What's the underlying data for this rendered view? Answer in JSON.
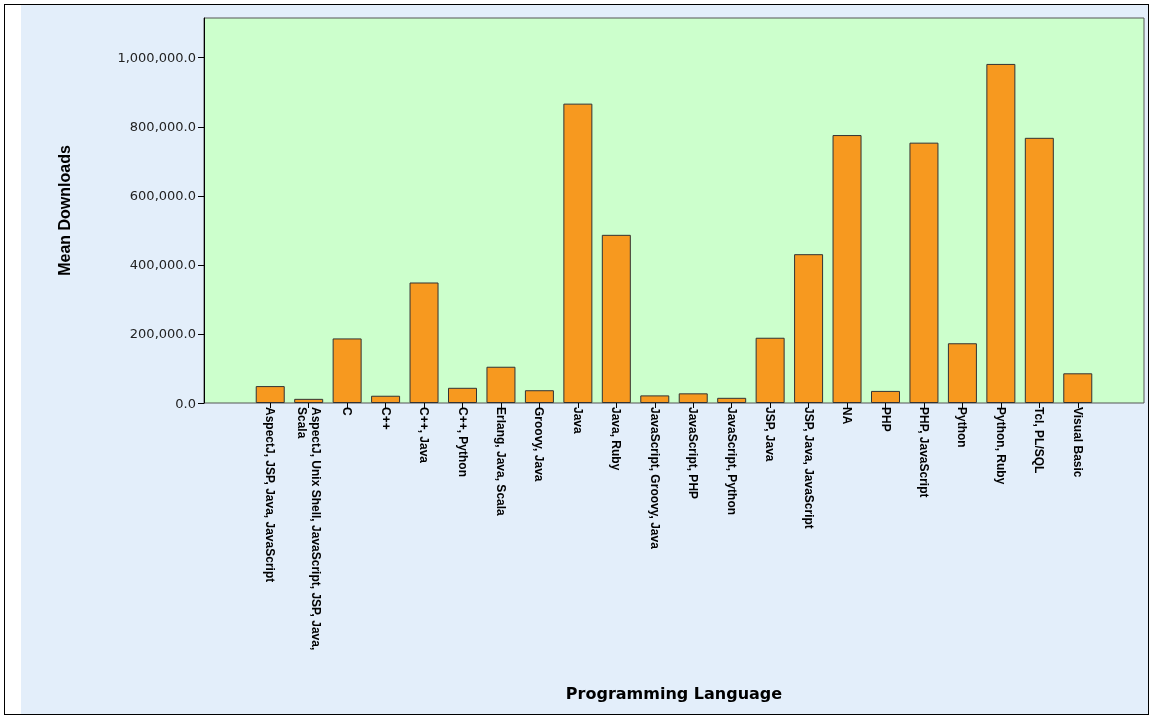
{
  "chart_data": {
    "type": "bar",
    "xlabel": "Programming Language",
    "ylabel": "Mean Downloads",
    "categories": [
      "AspectJ, JSP, Java, JavaScript",
      "AspectJ, Unix Shell, JavaScript, JSP, Java, Scala",
      "C",
      "C++",
      "C++, Java",
      "C++, Python",
      "Erlang, Java, Scala",
      "Groovy, Java",
      "Java",
      "Java, Ruby",
      "JavaScript, Groovy, Java",
      "JavaScript, PHP",
      "JavaScript, Python",
      "JSP, Java",
      "JSP, Java, JavaScript",
      "NA",
      "PHP",
      "PHP, JavaScript",
      "Python",
      "Python, Ruby",
      "Tcl, PL/SQL",
      "Visual Basic"
    ],
    "values": [
      49000,
      12000,
      187000,
      21000,
      349000,
      44000,
      105000,
      37000,
      867000,
      487000,
      22000,
      28000,
      15000,
      189000,
      431000,
      776000,
      35000,
      754000,
      173000,
      982000,
      768000,
      86000
    ],
    "color": "#f7991f",
    "ylim": [
      0,
      1115000
    ],
    "yticks": [
      {
        "value": 0,
        "label": "0.0"
      },
      {
        "value": 200000,
        "label": "200,000.0"
      },
      {
        "value": 400000,
        "label": "400,000.0"
      },
      {
        "value": 600000,
        "label": "600,000.0"
      },
      {
        "value": 800000,
        "label": "800,000.0"
      },
      {
        "value": 1000000,
        "label": "1,000,000.0"
      }
    ],
    "grid": false
  }
}
